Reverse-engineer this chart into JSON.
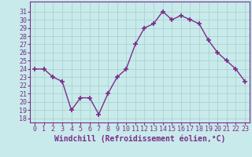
{
  "x": [
    0,
    1,
    2,
    3,
    4,
    5,
    6,
    7,
    8,
    9,
    10,
    11,
    12,
    13,
    14,
    15,
    16,
    17,
    18,
    19,
    20,
    21,
    22,
    23
  ],
  "y": [
    24,
    24,
    23,
    22.5,
    19,
    20.5,
    20.5,
    18.5,
    21,
    23,
    24,
    27,
    29,
    29.5,
    31,
    30,
    30.5,
    30,
    29.5,
    27.5,
    26,
    25,
    24,
    22.5
  ],
  "line_color": "#7b2d8b",
  "marker": "+",
  "marker_size": 4,
  "bg_color": "#c8eaea",
  "grid_color": "#b0d4d4",
  "xlabel": "Windchill (Refroidissement éolien,°C)",
  "ylabel_ticks": [
    18,
    19,
    20,
    21,
    22,
    23,
    24,
    25,
    26,
    27,
    28,
    29,
    30,
    31
  ],
  "ylim": [
    17.5,
    32.2
  ],
  "xlim": [
    -0.5,
    23.5
  ],
  "xlabel_fontsize": 7,
  "tick_fontsize": 6,
  "line_width": 1.0
}
